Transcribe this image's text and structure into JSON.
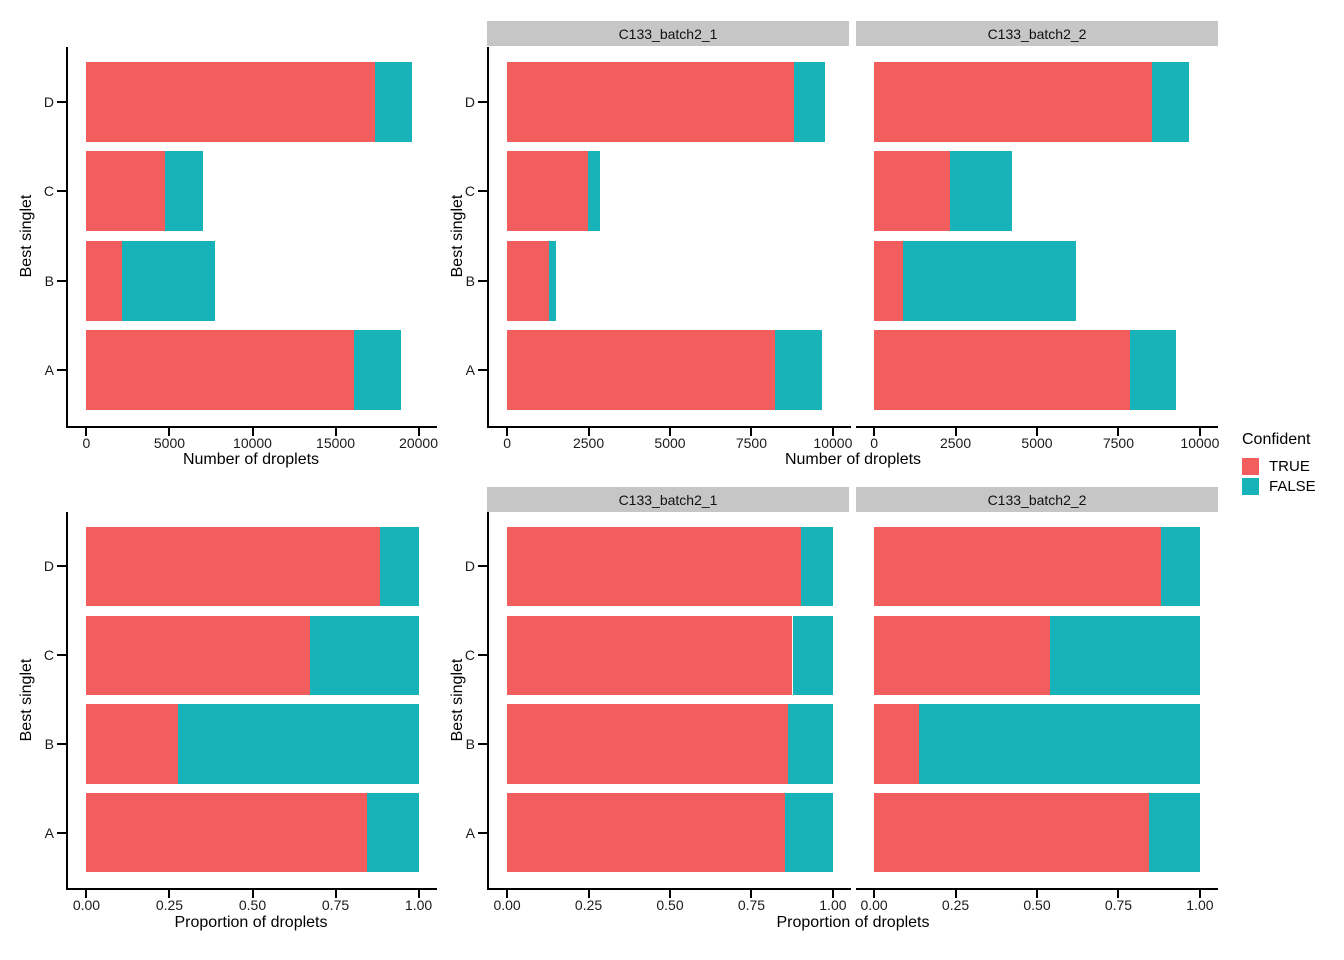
{
  "colors": {
    "TRUE": "#F25D5D",
    "FALSE": "#17B3B9",
    "strip_bg": "#C6C6C6",
    "axis": "#000000"
  },
  "legend": {
    "title": "Confident",
    "items": [
      {
        "label": "TRUE",
        "color": "TRUE"
      },
      {
        "label": "FALSE",
        "color": "FALSE"
      }
    ]
  },
  "chart_data": {
    "type": "bar",
    "orientation": "horizontal",
    "stacked": true,
    "grid": false,
    "legend_position": "right",
    "ylabel": "Best singlet",
    "categories": [
      "A",
      "B",
      "C",
      "D"
    ],
    "series_names": [
      "TRUE",
      "FALSE"
    ],
    "rows": [
      {
        "xlabel": "Number of droplets",
        "panels": [
          {
            "facet": null,
            "xlim": [
              0,
              20000
            ],
            "xticks": [
              0,
              5000,
              10000,
              15000,
              20000
            ],
            "xtick_labels": [
              "0",
              "5000",
              "10000",
              "15000",
              "20000"
            ],
            "series": [
              {
                "name": "TRUE",
                "values": [
                  16100,
                  2150,
                  4750,
                  17350
                ]
              },
              {
                "name": "FALSE",
                "values": [
                  2870,
                  5590,
                  2280,
                  2230
                ]
              }
            ]
          },
          {
            "facet": "C133_batch2_1",
            "xlim": [
              0,
              10000
            ],
            "xticks": [
              0,
              2500,
              5000,
              7500,
              10000
            ],
            "xtick_labels": [
              "0",
              "2500",
              "5000",
              "7500",
              "10000"
            ],
            "series": [
              {
                "name": "TRUE",
                "values": [
                  8230,
                  1300,
                  2470,
                  8810
                ]
              },
              {
                "name": "FALSE",
                "values": [
                  1430,
                  210,
                  370,
                  960
                ]
              }
            ]
          },
          {
            "facet": "C133_batch2_2",
            "xlim": [
              0,
              10000
            ],
            "xticks": [
              0,
              2500,
              5000,
              7500,
              10000
            ],
            "xtick_labels": [
              "0",
              "2500",
              "5000",
              "7500",
              "10000"
            ],
            "series": [
              {
                "name": "TRUE",
                "values": [
                  7840,
                  880,
                  2330,
                  8530
                ]
              },
              {
                "name": "FALSE",
                "values": [
                  1420,
                  5330,
                  1890,
                  1140
                ]
              }
            ]
          }
        ]
      },
      {
        "xlabel": "Proportion of droplets",
        "panels": [
          {
            "facet": null,
            "xlim": [
              0,
              1
            ],
            "xticks": [
              0,
              0.25,
              0.5,
              0.75,
              1
            ],
            "xtick_labels": [
              "0.00",
              "0.25",
              "0.50",
              "0.75",
              "1.00"
            ],
            "series": [
              {
                "name": "TRUE",
                "values": [
                  0.846,
                  0.275,
                  0.672,
                  0.885
                ]
              },
              {
                "name": "FALSE",
                "values": [
                  0.154,
                  0.725,
                  0.328,
                  0.115
                ]
              }
            ]
          },
          {
            "facet": "C133_batch2_1",
            "xlim": [
              0,
              1
            ],
            "xticks": [
              0,
              0.25,
              0.5,
              0.75,
              1
            ],
            "xtick_labels": [
              "0.00",
              "0.25",
              "0.50",
              "0.75",
              "1.00"
            ],
            "series": [
              {
                "name": "TRUE",
                "values": [
                  0.853,
                  0.863,
                  0.876,
                  0.903
                ]
              },
              {
                "name": "FALSE",
                "values": [
                  0.147,
                  0.137,
                  0.124,
                  0.097
                ]
              }
            ]
          },
          {
            "facet": "C133_batch2_2",
            "xlim": [
              0,
              1
            ],
            "xticks": [
              0,
              0.25,
              0.5,
              0.75,
              1
            ],
            "xtick_labels": [
              "0.00",
              "0.25",
              "0.50",
              "0.75",
              "1.00"
            ],
            "series": [
              {
                "name": "TRUE",
                "values": [
                  0.845,
                  0.138,
                  0.54,
                  0.882
                ]
              },
              {
                "name": "FALSE",
                "values": [
                  0.155,
                  0.862,
                  0.46,
                  0.118
                ]
              }
            ]
          }
        ]
      }
    ]
  }
}
